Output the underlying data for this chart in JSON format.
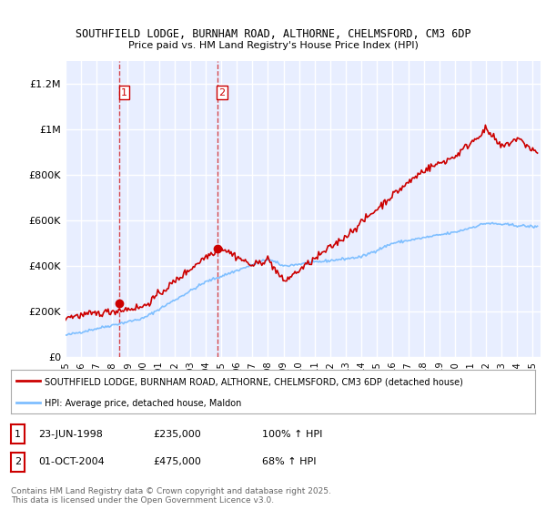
{
  "title_line1": "SOUTHFIELD LODGE, BURNHAM ROAD, ALTHORNE, CHELMSFORD, CM3 6DP",
  "title_line2": "Price paid vs. HM Land Registry's House Price Index (HPI)",
  "ylabel_ticks": [
    "£0",
    "£200K",
    "£400K",
    "£600K",
    "£800K",
    "£1M",
    "£1.2M"
  ],
  "ylabel_values": [
    0,
    200000,
    400000,
    600000,
    800000,
    1000000,
    1200000
  ],
  "ylim": [
    0,
    1300000
  ],
  "xlim_start": 1995,
  "xlim_end": 2025.5,
  "background_color": "#f0f4ff",
  "plot_bg_color": "#e8eeff",
  "grid_color": "#ffffff",
  "red_color": "#cc0000",
  "blue_color": "#7fbfff",
  "sale1": {
    "date": 1998.47,
    "price": 235000,
    "label": "1"
  },
  "sale2": {
    "date": 2004.75,
    "price": 475000,
    "label": "2"
  },
  "legend_entry1": "SOUTHFIELD LODGE, BURNHAM ROAD, ALTHORNE, CHELMSFORD, CM3 6DP (detached house)",
  "legend_entry2": "HPI: Average price, detached house, Maldon",
  "table_row1": [
    "1",
    "23-JUN-1998",
    "£235,000",
    "100% ↑ HPI"
  ],
  "table_row2": [
    "2",
    "01-OCT-2004",
    "£475,000",
    "68% ↑ HPI"
  ],
  "footnote": "Contains HM Land Registry data © Crown copyright and database right 2025.\nThis data is licensed under the Open Government Licence v3.0.",
  "xtick_years": [
    1995,
    1996,
    1997,
    1998,
    1999,
    2000,
    2001,
    2002,
    2003,
    2004,
    2005,
    2006,
    2007,
    2008,
    2009,
    2010,
    2011,
    2012,
    2013,
    2014,
    2015,
    2016,
    2017,
    2018,
    2019,
    2020,
    2021,
    2022,
    2023,
    2024,
    2025
  ]
}
